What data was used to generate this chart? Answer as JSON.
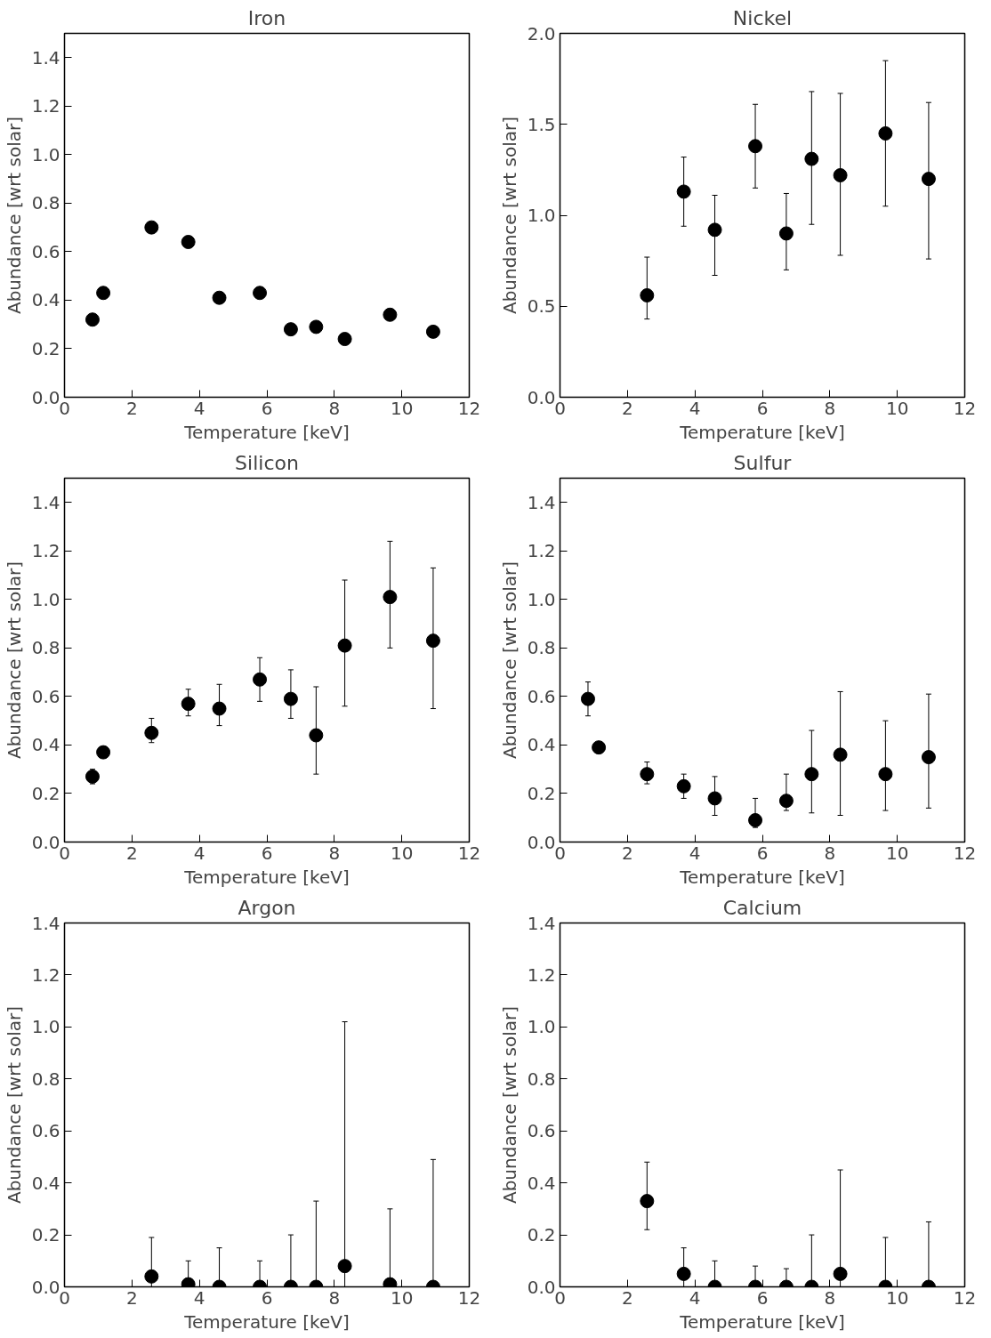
{
  "chart_data": [
    {
      "type": "scatter",
      "title": "Iron",
      "xlabel": "Temperature [keV]",
      "ylabel": "Abundance [wrt solar]",
      "marker": "circle",
      "xlim": [
        0,
        12
      ],
      "xticks": [
        0,
        2,
        4,
        6,
        8,
        10,
        12
      ],
      "ylim": [
        0,
        1.5
      ],
      "yticks": [
        {
          "value": 0,
          "label": "0.0"
        },
        0.2,
        0.4,
        0.6,
        0.8,
        {
          "value": 1,
          "label": "1.0"
        },
        1.2,
        1.4
      ],
      "x": [
        0.83,
        1.15,
        2.58,
        3.67,
        4.59,
        5.79,
        6.71,
        7.46,
        8.31,
        9.65,
        10.93
      ],
      "series": [
        {
          "color": "#000000",
          "values": [
            0.32,
            0.43,
            0.7,
            0.64,
            0.41,
            0.43,
            0.28,
            0.29,
            0.24,
            0.34,
            0.27
          ]
        }
      ]
    },
    {
      "type": "scatter",
      "title": "Nickel",
      "xlabel": "Temperature [keV]",
      "ylabel": "Abundance [wrt solar]",
      "marker": "circle",
      "xlim": [
        0,
        12
      ],
      "xticks": [
        0,
        2,
        4,
        6,
        8,
        10,
        12
      ],
      "ylim": [
        0,
        2.0
      ],
      "yticks": [
        {
          "value": 0,
          "label": "0.0"
        },
        0.5,
        {
          "value": 1,
          "label": "1.0"
        },
        1.5,
        {
          "value": 2,
          "label": "2.0"
        }
      ],
      "x": [
        2.58,
        3.67,
        4.59,
        5.79,
        6.71,
        7.46,
        8.31,
        9.65,
        10.93
      ],
      "series": [
        {
          "color": "#000000",
          "values": [
            0.56,
            1.13,
            0.92,
            1.38,
            0.9,
            1.31,
            1.22,
            1.45,
            1.2
          ],
          "errors": [
            [
              0.43,
              0.77
            ],
            [
              0.94,
              1.32
            ],
            [
              0.67,
              1.11
            ],
            [
              1.15,
              1.61
            ],
            [
              0.7,
              1.12
            ],
            [
              0.95,
              1.68
            ],
            [
              0.78,
              1.67
            ],
            [
              1.05,
              1.85
            ],
            [
              0.76,
              1.62
            ]
          ]
        }
      ]
    },
    {
      "type": "scatter",
      "title": "Silicon",
      "xlabel": "Temperature [keV]",
      "ylabel": "Abundance [wrt solar]",
      "marker": "circle",
      "xlim": [
        0,
        12
      ],
      "xticks": [
        0,
        2,
        4,
        6,
        8,
        10,
        12
      ],
      "ylim": [
        0,
        1.5
      ],
      "yticks": [
        {
          "value": 0,
          "label": "0.0"
        },
        0.2,
        0.4,
        0.6,
        0.8,
        {
          "value": 1,
          "label": "1.0"
        },
        1.2,
        1.4
      ],
      "x": [
        0.83,
        1.15,
        2.58,
        3.67,
        4.59,
        5.79,
        6.71,
        7.46,
        8.31,
        9.65,
        10.93
      ],
      "series": [
        {
          "color": "#000000",
          "values": [
            0.27,
            0.37,
            0.45,
            0.57,
            0.55,
            0.67,
            0.59,
            0.44,
            0.81,
            1.01,
            0.83
          ],
          "errors": [
            [
              0.24,
              0.3
            ],
            null,
            [
              0.41,
              0.51
            ],
            [
              0.52,
              0.63
            ],
            [
              0.48,
              0.65
            ],
            [
              0.58,
              0.76
            ],
            [
              0.51,
              0.71
            ],
            [
              0.28,
              0.64
            ],
            [
              0.56,
              1.08
            ],
            [
              0.8,
              1.24
            ],
            [
              0.55,
              1.13
            ]
          ]
        }
      ]
    },
    {
      "type": "scatter",
      "title": "Sulfur",
      "xlabel": "Temperature [keV]",
      "ylabel": "Abundance [wrt solar]",
      "marker": "circle",
      "xlim": [
        0,
        12
      ],
      "xticks": [
        0,
        2,
        4,
        6,
        8,
        10,
        12
      ],
      "ylim": [
        0,
        1.5
      ],
      "yticks": [
        {
          "value": 0,
          "label": "0.0"
        },
        0.2,
        0.4,
        0.6,
        0.8,
        {
          "value": 1,
          "label": "1.0"
        },
        1.2,
        1.4
      ],
      "x": [
        0.83,
        1.15,
        2.58,
        3.67,
        4.59,
        5.79,
        6.71,
        7.46,
        8.31,
        9.65,
        10.93
      ],
      "series": [
        {
          "color": "#000000",
          "values": [
            0.59,
            0.39,
            0.28,
            0.23,
            0.18,
            0.09,
            0.17,
            0.28,
            0.36,
            0.28,
            0.35
          ],
          "errors": [
            [
              0.52,
              0.66
            ],
            null,
            [
              0.24,
              0.33
            ],
            [
              0.18,
              0.28
            ],
            [
              0.11,
              0.27
            ],
            [
              0.06,
              0.18
            ],
            [
              0.13,
              0.28
            ],
            [
              0.12,
              0.46
            ],
            [
              0.11,
              0.62
            ],
            [
              0.13,
              0.5
            ],
            [
              0.14,
              0.61
            ]
          ]
        }
      ]
    },
    {
      "type": "scatter",
      "title": "Argon",
      "xlabel": "Temperature [keV]",
      "ylabel": "Abundance [wrt solar]",
      "marker": "circle",
      "xlim": [
        0,
        12
      ],
      "xticks": [
        0,
        2,
        4,
        6,
        8,
        10,
        12
      ],
      "ylim": [
        0,
        1.4
      ],
      "yticks": [
        {
          "value": 0,
          "label": "0.0"
        },
        0.2,
        0.4,
        0.6,
        0.8,
        {
          "value": 1,
          "label": "1.0"
        },
        1.2,
        1.4
      ],
      "x": [
        2.58,
        3.67,
        4.59,
        5.79,
        6.71,
        7.46,
        8.31,
        9.65,
        10.93
      ],
      "series": [
        {
          "color": "#000000",
          "values": [
            0.04,
            0.01,
            0,
            0,
            0,
            0,
            0.08,
            0.01,
            0
          ],
          "errors": [
            [
              0,
              0.19
            ],
            [
              0,
              0.1
            ],
            [
              0,
              0.15
            ],
            [
              0,
              0.1
            ],
            [
              0,
              0.2
            ],
            [
              0,
              0.33
            ],
            [
              0,
              1.02
            ],
            [
              0,
              0.3
            ],
            [
              0,
              0.49
            ]
          ]
        }
      ]
    },
    {
      "type": "scatter",
      "title": "Calcium",
      "xlabel": "Temperature [keV]",
      "ylabel": "Abundance [wrt solar]",
      "marker": "circle",
      "xlim": [
        0,
        12
      ],
      "xticks": [
        0,
        2,
        4,
        6,
        8,
        10,
        12
      ],
      "ylim": [
        0,
        1.4
      ],
      "yticks": [
        {
          "value": 0,
          "label": "0.0"
        },
        0.2,
        0.4,
        0.6,
        0.8,
        {
          "value": 1,
          "label": "1.0"
        },
        1.2,
        1.4
      ],
      "x": [
        2.58,
        3.67,
        4.59,
        5.79,
        6.71,
        7.46,
        8.31,
        9.65,
        10.93
      ],
      "series": [
        {
          "color": "#000000",
          "values": [
            0.33,
            0.05,
            0,
            0,
            0,
            0,
            0.05,
            0,
            0
          ],
          "errors": [
            [
              0.22,
              0.48
            ],
            [
              0,
              0.15
            ],
            [
              0,
              0.1
            ],
            [
              0,
              0.08
            ],
            [
              0,
              0.07
            ],
            [
              0,
              0.2
            ],
            [
              0,
              0.45
            ],
            [
              0,
              0.19
            ],
            [
              0,
              0.25
            ]
          ]
        }
      ]
    }
  ]
}
